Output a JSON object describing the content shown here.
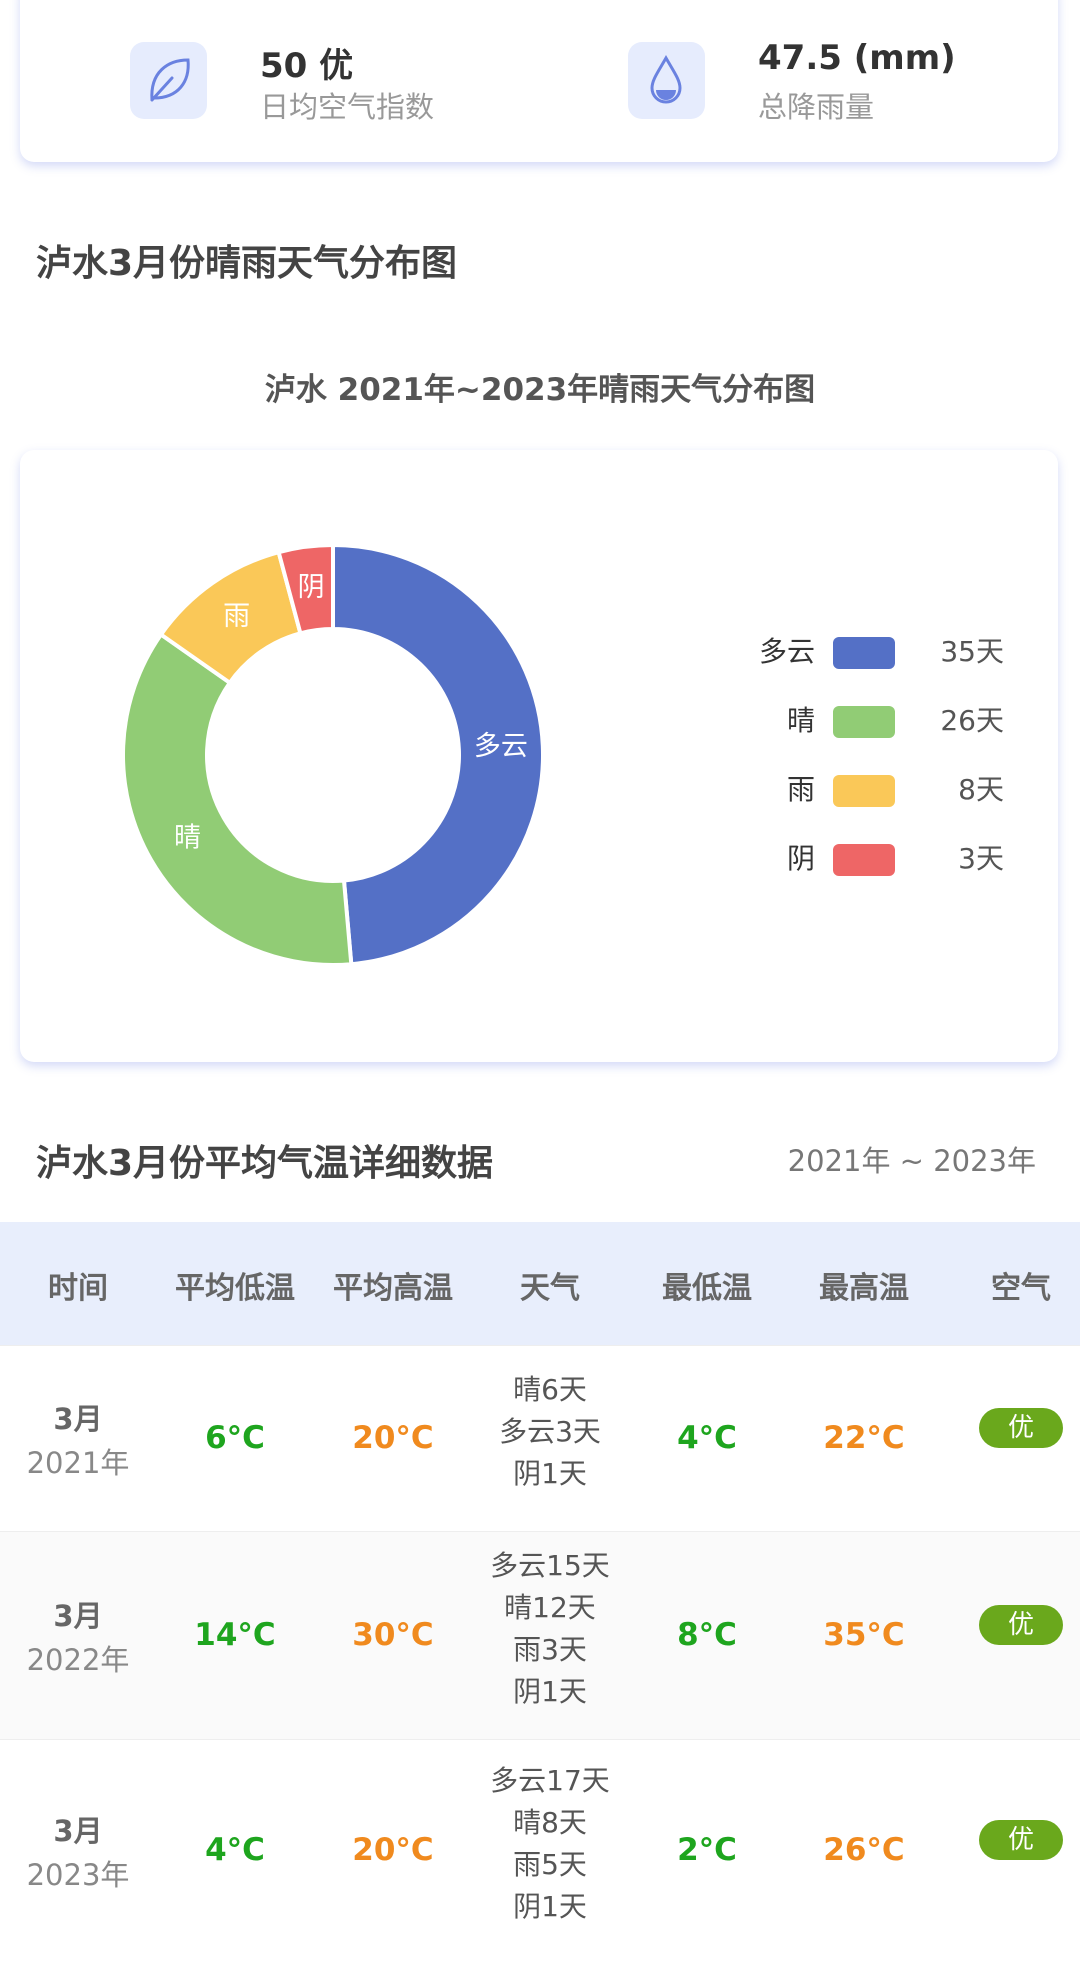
{
  "stats": [
    {
      "value": "50 优",
      "label": "日均空气指数"
    },
    {
      "value": "47.5 (mm)",
      "label": "总降雨量"
    }
  ],
  "distribution_section": {
    "title": "泸水3月份晴雨天气分布图"
  },
  "chart_data": {
    "type": "pie",
    "donut": true,
    "title": "泸水 2021年~2023年晴雨天气分布图",
    "categories": [
      "多云",
      "晴",
      "雨",
      "阴"
    ],
    "values": [
      35,
      26,
      8,
      3
    ],
    "value_labels": [
      "35天",
      "26天",
      "8天",
      "3天"
    ],
    "colors": [
      "#5470c6",
      "#91cc75",
      "#fac858",
      "#ee6666"
    ],
    "legend": "right"
  },
  "temperature_section": {
    "title": "泸水3月份平均气温详细数据",
    "range": "2021年 ~ 2023年"
  },
  "table": {
    "headers": [
      "时间",
      "平均低温",
      "平均高温",
      "天气",
      "最低温",
      "最高温",
      "空气"
    ],
    "rows": [
      {
        "month": "3月",
        "year": "2021年",
        "avg_low": "6°C",
        "avg_high": "20°C",
        "weather": [
          "晴6天",
          "多云3天",
          "阴1天"
        ],
        "min": "4°C",
        "max": "22°C",
        "air": "优"
      },
      {
        "month": "3月",
        "year": "2022年",
        "avg_low": "14°C",
        "avg_high": "30°C",
        "weather": [
          "多云15天",
          "晴12天",
          "雨3天",
          "阴1天"
        ],
        "min": "8°C",
        "max": "35°C",
        "air": "优"
      },
      {
        "month": "3月",
        "year": "2023年",
        "avg_low": "4°C",
        "avg_high": "20°C",
        "weather": [
          "多云17天",
          "晴8天",
          "雨5天",
          "阴1天"
        ],
        "min": "2°C",
        "max": "26°C",
        "air": "优"
      }
    ]
  }
}
